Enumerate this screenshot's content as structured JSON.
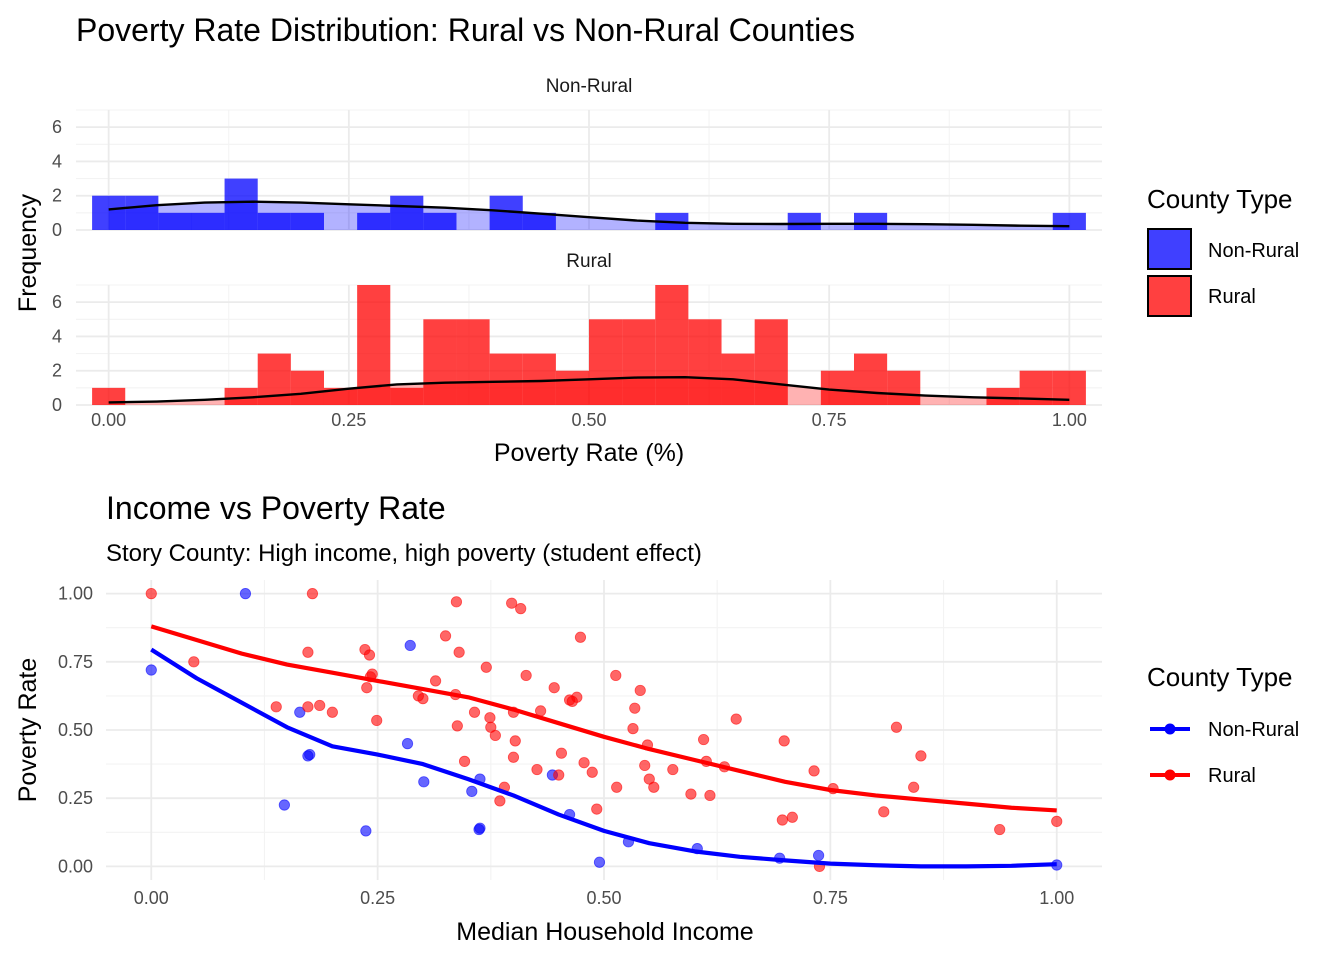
{
  "colors": {
    "non_rural": "#0000FF",
    "rural": "#FF0000",
    "density_line": "#000000"
  },
  "chart_data": [
    {
      "type": "bar",
      "subtype": "faceted-histogram-with-density",
      "title": "Poverty Rate Distribution: Rural vs Non-Rural Counties",
      "xlabel": "Poverty Rate (%)",
      "ylabel": "Frequency",
      "xlim": [
        -0.034,
        1.034
      ],
      "ylim": [
        0,
        7
      ],
      "x_ticks": [
        "0.00",
        "0.25",
        "0.50",
        "0.75",
        "1.00"
      ],
      "y_ticks": [
        "0",
        "2",
        "4",
        "6"
      ],
      "bin_width": 0.0345,
      "grid": true,
      "legend": {
        "title": "County Type",
        "position": "right",
        "entries": [
          "Non-Rural",
          "Rural"
        ]
      },
      "facets": [
        {
          "label": "Non-Rural",
          "color": "#0000FF",
          "bin_centers": [
            0.0,
            0.0345,
            0.069,
            0.1034,
            0.1379,
            0.1724,
            0.2069,
            0.2414,
            0.2759,
            0.3103,
            0.3448,
            0.3793,
            0.4138,
            0.4483,
            0.4828,
            0.5172,
            0.5517,
            0.5862,
            0.6207,
            0.6552,
            0.6897,
            0.7241,
            0.7586,
            0.7931,
            0.8276,
            0.8621,
            0.8966,
            0.931,
            0.9655,
            1.0
          ],
          "counts": [
            2,
            2,
            1,
            1,
            3,
            1,
            1,
            0,
            1,
            2,
            1,
            0,
            2,
            1,
            0,
            0,
            0,
            1,
            0,
            0,
            0,
            1,
            0,
            1,
            0,
            0,
            0,
            0,
            0,
            1
          ],
          "density": {
            "x": [
              0.0,
              0.05,
              0.1,
              0.15,
              0.2,
              0.25,
              0.3,
              0.35,
              0.4,
              0.45,
              0.5,
              0.55,
              0.6,
              0.65,
              0.7,
              0.75,
              0.8,
              0.85,
              0.9,
              0.95,
              1.0
            ],
            "y": [
              1.2,
              1.45,
              1.6,
              1.65,
              1.6,
              1.5,
              1.4,
              1.3,
              1.15,
              0.95,
              0.75,
              0.55,
              0.42,
              0.36,
              0.35,
              0.36,
              0.36,
              0.34,
              0.3,
              0.25,
              0.22
            ]
          }
        },
        {
          "label": "Rural",
          "color": "#FF0000",
          "bin_centers": [
            0.0,
            0.0345,
            0.069,
            0.1034,
            0.1379,
            0.1724,
            0.2069,
            0.2414,
            0.2759,
            0.3103,
            0.3448,
            0.3793,
            0.4138,
            0.4483,
            0.4828,
            0.5172,
            0.5517,
            0.5862,
            0.6207,
            0.6552,
            0.6897,
            0.7241,
            0.7586,
            0.7931,
            0.8276,
            0.8621,
            0.8966,
            0.931,
            0.9655,
            1.0
          ],
          "counts": [
            1,
            0,
            0,
            0,
            1,
            3,
            2,
            1,
            7,
            1,
            5,
            5,
            3,
            3,
            2,
            5,
            5,
            7,
            5,
            3,
            5,
            0,
            2,
            3,
            2,
            0,
            0,
            1,
            2,
            2
          ],
          "density": {
            "x": [
              0.0,
              0.05,
              0.1,
              0.15,
              0.2,
              0.25,
              0.3,
              0.35,
              0.4,
              0.45,
              0.5,
              0.55,
              0.6,
              0.65,
              0.7,
              0.75,
              0.8,
              0.85,
              0.9,
              0.95,
              1.0
            ],
            "y": [
              0.15,
              0.2,
              0.3,
              0.45,
              0.65,
              0.95,
              1.2,
              1.3,
              1.35,
              1.4,
              1.5,
              1.6,
              1.62,
              1.5,
              1.2,
              0.9,
              0.7,
              0.55,
              0.45,
              0.38,
              0.3
            ]
          }
        }
      ]
    },
    {
      "type": "scatter",
      "subtype": "scatter-with-smoothed-lines",
      "title": "Income vs Poverty Rate",
      "subtitle": "Story County: High income, high poverty (student effect)",
      "xlabel": "Median Household Income",
      "ylabel": "Poverty Rate",
      "xlim": [
        -0.05,
        1.05
      ],
      "ylim": [
        -0.05,
        1.05
      ],
      "x_ticks": [
        "0.00",
        "0.25",
        "0.50",
        "0.75",
        "1.00"
      ],
      "y_ticks": [
        "0.00",
        "0.25",
        "0.50",
        "0.75",
        "1.00"
      ],
      "grid": true,
      "legend": {
        "title": "County Type",
        "position": "right",
        "entries": [
          "Non-Rural",
          "Rural"
        ]
      },
      "series": [
        {
          "name": "Non-Rural",
          "color": "#0000FF",
          "points": [
            [
              0.0,
              0.72
            ],
            [
              0.104,
              1.0
            ],
            [
              0.147,
              0.225
            ],
            [
              0.164,
              0.565
            ],
            [
              0.173,
              0.405
            ],
            [
              0.175,
              0.41
            ],
            [
              0.237,
              0.13
            ],
            [
              0.283,
              0.45
            ],
            [
              0.286,
              0.81
            ],
            [
              0.301,
              0.31
            ],
            [
              0.354,
              0.275
            ],
            [
              0.362,
              0.135
            ],
            [
              0.363,
              0.14
            ],
            [
              0.363,
              0.32
            ],
            [
              0.443,
              0.335
            ],
            [
              0.462,
              0.19
            ],
            [
              0.495,
              0.015
            ],
            [
              0.527,
              0.09
            ],
            [
              0.603,
              0.065
            ],
            [
              0.694,
              0.03
            ],
            [
              0.737,
              0.04
            ],
            [
              1.0,
              0.005
            ]
          ],
          "smooth": {
            "x": [
              0.0,
              0.05,
              0.1,
              0.15,
              0.2,
              0.25,
              0.3,
              0.35,
              0.4,
              0.45,
              0.5,
              0.55,
              0.6,
              0.65,
              0.7,
              0.75,
              0.8,
              0.85,
              0.9,
              0.95,
              1.0
            ],
            "y": [
              0.795,
              0.69,
              0.6,
              0.51,
              0.44,
              0.41,
              0.375,
              0.32,
              0.26,
              0.19,
              0.13,
              0.085,
              0.055,
              0.035,
              0.022,
              0.01,
              0.004,
              0.0,
              0.0,
              0.002,
              0.008
            ]
          }
        },
        {
          "name": "Rural",
          "color": "#FF0000",
          "points": [
            [
              0.0,
              1.0
            ],
            [
              0.047,
              0.75
            ],
            [
              0.138,
              0.585
            ],
            [
              0.173,
              0.785
            ],
            [
              0.173,
              0.585
            ],
            [
              0.178,
              1.0
            ],
            [
              0.186,
              0.59
            ],
            [
              0.2,
              0.565
            ],
            [
              0.236,
              0.795
            ],
            [
              0.238,
              0.655
            ],
            [
              0.241,
              0.775
            ],
            [
              0.242,
              0.695
            ],
            [
              0.244,
              0.705
            ],
            [
              0.249,
              0.535
            ],
            [
              0.295,
              0.625
            ],
            [
              0.3,
              0.615
            ],
            [
              0.314,
              0.68
            ],
            [
              0.325,
              0.845
            ],
            [
              0.336,
              0.63
            ],
            [
              0.337,
              0.97
            ],
            [
              0.338,
              0.515
            ],
            [
              0.34,
              0.785
            ],
            [
              0.346,
              0.385
            ],
            [
              0.357,
              0.565
            ],
            [
              0.37,
              0.73
            ],
            [
              0.374,
              0.545
            ],
            [
              0.375,
              0.51
            ],
            [
              0.38,
              0.48
            ],
            [
              0.385,
              0.24
            ],
            [
              0.39,
              0.29
            ],
            [
              0.398,
              0.965
            ],
            [
              0.4,
              0.4
            ],
            [
              0.4,
              0.565
            ],
            [
              0.402,
              0.46
            ],
            [
              0.408,
              0.945
            ],
            [
              0.414,
              0.7
            ],
            [
              0.426,
              0.355
            ],
            [
              0.43,
              0.57
            ],
            [
              0.445,
              0.655
            ],
            [
              0.45,
              0.335
            ],
            [
              0.453,
              0.415
            ],
            [
              0.462,
              0.61
            ],
            [
              0.465,
              0.605
            ],
            [
              0.47,
              0.62
            ],
            [
              0.474,
              0.84
            ],
            [
              0.478,
              0.38
            ],
            [
              0.487,
              0.345
            ],
            [
              0.492,
              0.21
            ],
            [
              0.513,
              0.7
            ],
            [
              0.514,
              0.29
            ],
            [
              0.532,
              0.505
            ],
            [
              0.534,
              0.58
            ],
            [
              0.54,
              0.645
            ],
            [
              0.545,
              0.37
            ],
            [
              0.548,
              0.445
            ],
            [
              0.55,
              0.32
            ],
            [
              0.555,
              0.29
            ],
            [
              0.576,
              0.355
            ],
            [
              0.596,
              0.265
            ],
            [
              0.61,
              0.465
            ],
            [
              0.613,
              0.385
            ],
            [
              0.617,
              0.26
            ],
            [
              0.633,
              0.365
            ],
            [
              0.646,
              0.54
            ],
            [
              0.697,
              0.17
            ],
            [
              0.699,
              0.46
            ],
            [
              0.708,
              0.18
            ],
            [
              0.732,
              0.35
            ],
            [
              0.738,
              0.0
            ],
            [
              0.753,
              0.285
            ],
            [
              0.809,
              0.2
            ],
            [
              0.823,
              0.51
            ],
            [
              0.842,
              0.29
            ],
            [
              0.85,
              0.405
            ],
            [
              0.937,
              0.135
            ],
            [
              1.0,
              0.165
            ]
          ],
          "smooth": {
            "x": [
              0.0,
              0.05,
              0.1,
              0.15,
              0.2,
              0.25,
              0.3,
              0.35,
              0.4,
              0.45,
              0.5,
              0.55,
              0.6,
              0.65,
              0.7,
              0.75,
              0.8,
              0.85,
              0.9,
              0.95,
              1.0
            ],
            "y": [
              0.88,
              0.83,
              0.78,
              0.74,
              0.71,
              0.68,
              0.65,
              0.62,
              0.575,
              0.525,
              0.475,
              0.43,
              0.39,
              0.35,
              0.31,
              0.28,
              0.26,
              0.245,
              0.23,
              0.215,
              0.205
            ]
          }
        }
      ]
    }
  ]
}
